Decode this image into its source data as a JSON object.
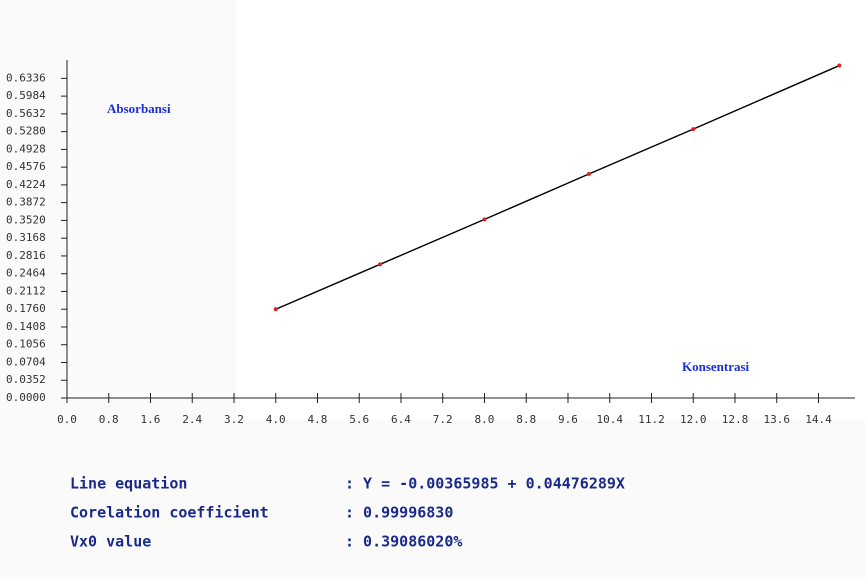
{
  "chart_data": {
    "type": "line",
    "ylabel": "Absorbansi",
    "xlabel": "Konsentrasi",
    "x": [
      4,
      6,
      8,
      10,
      12,
      14.8
    ],
    "values": [
      0.176,
      0.265,
      0.354,
      0.444,
      0.533,
      0.659
    ],
    "color": "#000000",
    "marker_color": "#e02020",
    "xlim": [
      0,
      15.1
    ],
    "ylim": [
      0,
      0.67
    ],
    "xticks": [
      {
        "value": 0,
        "label": "0.0"
      },
      0.8,
      1.6,
      2.4,
      3.2,
      {
        "value": 4,
        "label": "4.0"
      },
      4.8,
      5.6,
      6.4,
      7.2,
      {
        "value": 8,
        "label": "8.0"
      },
      8.8,
      9.6,
      10.4,
      11.2,
      {
        "value": 12,
        "label": "12.0"
      },
      12.8,
      13.6,
      14.4
    ],
    "yticks": [
      {
        "value": 0,
        "label": "0.0000"
      },
      0.0352,
      0.0704,
      0.1056,
      0.1408,
      {
        "value": 0.176,
        "label": "0.1760"
      },
      0.2112,
      0.2464,
      0.2816,
      0.3168,
      {
        "value": 0.352,
        "label": "0.3520"
      },
      0.3872,
      0.4224,
      0.4576,
      0.4928,
      {
        "value": 0.528,
        "label": "0.5280"
      },
      0.5632,
      0.5984,
      0.6336
    ],
    "annotations": [
      {
        "label": "Line equation",
        "value": ": Y = -0.00365985 + 0.04476289X"
      },
      {
        "label": "Corelation coefficient",
        "value": ": 0.99996830"
      },
      {
        "label": "Vx0 value",
        "value": ": 0.39086020%"
      }
    ]
  }
}
